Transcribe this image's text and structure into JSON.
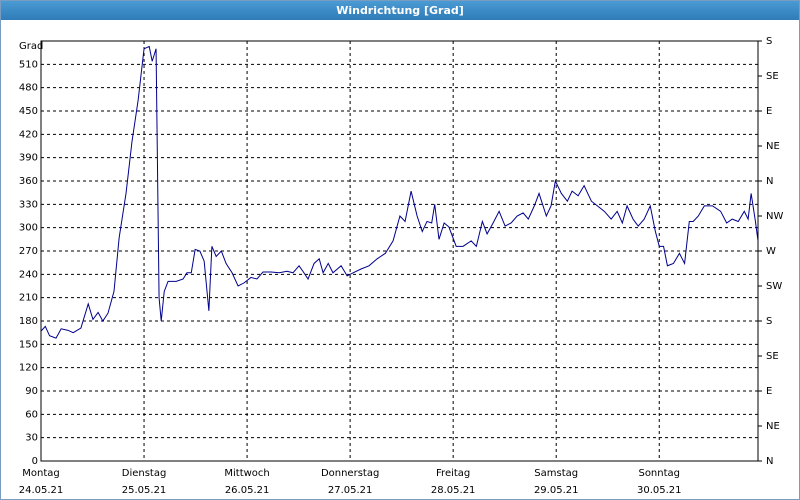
{
  "chart_data": {
    "type": "line",
    "title": "Windrichtung [Grad]",
    "y_label": "Grad",
    "x": [
      0,
      1,
      2,
      3.5,
      4.7,
      6.3,
      7.5,
      9.3,
      11,
      12.1,
      13.3,
      14.4,
      15.6,
      17,
      18.2,
      19.8,
      21.2,
      22.6,
      24,
      25.2,
      25.9,
      26.8,
      27.5,
      28,
      28.7,
      29.6,
      31.5,
      33.1,
      34,
      35,
      35.9,
      37,
      38,
      39.1,
      39.8,
      40.8,
      42,
      43.1,
      44.5,
      45.9,
      47.3,
      48.9,
      50.3,
      51.7,
      53.6,
      55.5,
      57.3,
      58.7,
      60.1,
      61,
      62.2,
      63.6,
      64.8,
      65.7,
      66.9,
      68,
      69.9,
      71.3,
      72.7,
      74.6,
      76.4,
      78.3,
      80.2,
      82,
      83.6,
      84.8,
      86.2,
      87.6,
      88.8,
      89.9,
      91,
      91.7,
      92.7,
      93.9,
      95,
      96.7,
      98.3,
      100.2,
      101.4,
      102.8,
      103.9,
      105.3,
      106.7,
      108.1,
      109.5,
      110.9,
      112.3,
      113.5,
      114.9,
      116,
      117.7,
      118.8,
      119.8,
      121.2,
      122.6,
      123.7,
      125.1,
      126.5,
      128.2,
      129.6,
      131.2,
      132.8,
      134.2,
      135.4,
      136.5,
      137.9,
      139.1,
      140.5,
      141.9,
      143.1,
      144,
      145,
      145.9,
      147.3,
      148.7,
      149.9,
      151,
      151.9,
      153.1,
      154.5,
      156.4,
      158.3,
      159.7,
      161,
      162.4,
      163.8,
      164.7,
      165.4,
      166.4,
      167
    ],
    "series": [
      {
        "name": "Windrichtung",
        "color": "#00008b",
        "values": [
          167,
          173,
          161,
          158,
          170,
          168,
          165,
          171,
          202,
          182,
          191,
          180,
          190,
          218,
          287,
          344,
          411,
          463,
          530,
          533,
          514,
          530,
          210,
          180,
          218,
          231,
          231,
          234,
          242,
          242,
          272,
          270,
          257,
          193,
          276,
          263,
          270,
          254,
          242,
          225,
          229,
          236,
          234,
          243,
          243,
          242,
          244,
          242,
          251,
          244,
          234,
          254,
          260,
          242,
          254,
          242,
          251,
          238,
          242,
          247,
          251,
          260,
          267,
          283,
          315,
          308,
          347,
          315,
          295,
          308,
          306,
          330,
          285,
          306,
          301,
          276,
          276,
          283,
          276,
          308,
          292,
          306,
          321,
          302,
          306,
          315,
          319,
          311,
          328,
          344,
          315,
          328,
          360,
          344,
          334,
          347,
          341,
          354,
          334,
          328,
          321,
          311,
          321,
          306,
          328,
          311,
          302,
          311,
          328,
          295,
          276,
          276,
          251,
          254,
          267,
          254,
          308,
          308,
          315,
          328,
          328,
          321,
          306,
          311,
          308,
          321,
          311,
          344,
          308,
          283
        ]
      }
    ],
    "xlim": [
      0,
      167
    ],
    "xticks": [
      {
        "value": 0,
        "label": "Montag"
      },
      {
        "value": 24,
        "label": "Dienstag"
      },
      {
        "value": 48,
        "label": "Mittwoch"
      },
      {
        "value": 72,
        "label": "Donnerstag"
      },
      {
        "value": 96,
        "label": "Freitag"
      },
      {
        "value": 120,
        "label": "Samstag"
      },
      {
        "value": 144,
        "label": "Sonntag"
      }
    ],
    "xtick_dates": [
      "24.05.21",
      "25.05.21",
      "26.05.21",
      "27.05.21",
      "28.05.21",
      "29.05.21",
      "30.05.21"
    ],
    "ylim": [
      0,
      540
    ],
    "yticks": [
      0,
      30,
      60,
      90,
      120,
      150,
      180,
      210,
      240,
      270,
      300,
      330,
      360,
      390,
      420,
      450,
      480,
      510
    ],
    "y2lim": [
      0,
      540
    ],
    "y2ticks": [
      {
        "value": 0,
        "label": "N"
      },
      {
        "value": 45,
        "label": "NE"
      },
      {
        "value": 90,
        "label": "E"
      },
      {
        "value": 135,
        "label": "SE"
      },
      {
        "value": 180,
        "label": "S"
      },
      {
        "value": 225,
        "label": "SW"
      },
      {
        "value": 270,
        "label": "W"
      },
      {
        "value": 315,
        "label": "NW"
      },
      {
        "value": 360,
        "label": "N"
      },
      {
        "value": 405,
        "label": "NE"
      },
      {
        "value": 450,
        "label": "E"
      },
      {
        "value": 495,
        "label": "SE"
      },
      {
        "value": 540,
        "label": "S"
      }
    ],
    "grid": true
  }
}
